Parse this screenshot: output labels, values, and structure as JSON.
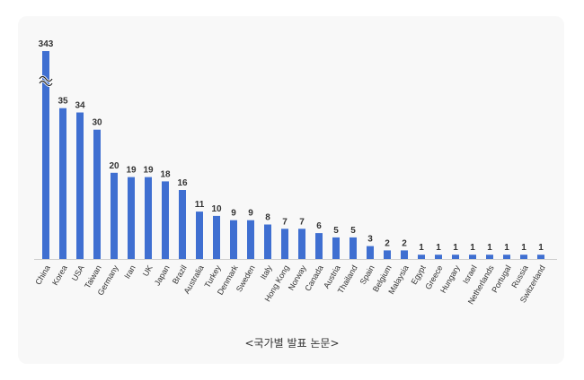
{
  "caption": "<국가별 발표 논문>",
  "colors": {
    "bar": "#3f6fd1",
    "axis": "#cfcfcf",
    "text": "#333333",
    "background": "#f8f8f8"
  },
  "chart_data": {
    "type": "bar",
    "title": "",
    "xlabel": "",
    "ylabel": "",
    "axis_break": true,
    "grid": false,
    "categories": [
      "China",
      "Korea",
      "USA",
      "Taiwan",
      "Germany",
      "Iran",
      "UK",
      "Japan",
      "Brazil",
      "Australia",
      "Turkey",
      "Denmark",
      "Sweden",
      "Italy",
      "Hong Kong",
      "Norway",
      "Canada",
      "Austria",
      "Thailand",
      "Spain",
      "Belgium",
      "Malaysia",
      "Egypt",
      "Greece",
      "Hungary",
      "Israel",
      "Netherlands",
      "Portugal",
      "Russia",
      "Switzerland"
    ],
    "values": [
      343,
      35,
      34,
      30,
      20,
      19,
      19,
      18,
      16,
      11,
      10,
      9,
      9,
      8,
      7,
      7,
      6,
      5,
      5,
      3,
      2,
      2,
      1,
      1,
      1,
      1,
      1,
      1,
      1,
      1
    ],
    "data_labels": [
      "343",
      "35",
      "34",
      "30",
      "20",
      "19",
      "19",
      "18",
      "16",
      "11",
      "10",
      "9",
      "9",
      "8",
      "7",
      "7",
      "6",
      "5",
      "5",
      "3",
      "2",
      "2",
      "1",
      "1",
      "1",
      "1",
      "1",
      "1",
      "1",
      "1"
    ]
  }
}
